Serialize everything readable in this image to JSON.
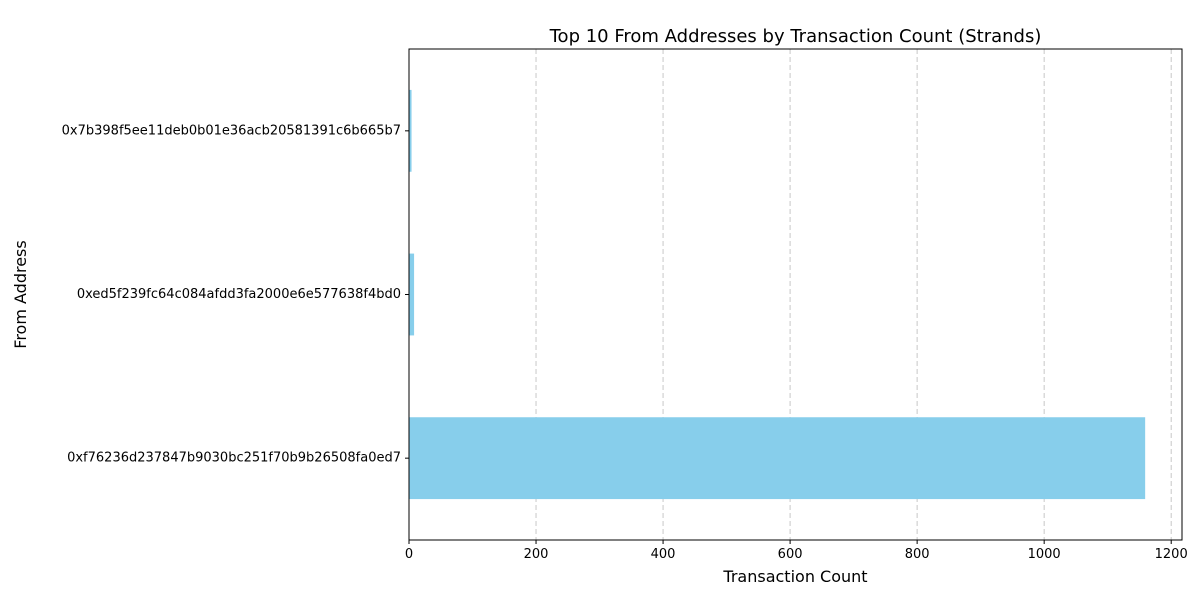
{
  "chart_data": {
    "type": "bar",
    "orientation": "horizontal",
    "title": "Top 10 From Addresses by Transaction Count (Strands)",
    "xlabel": "Transaction Count",
    "ylabel": "From Address",
    "categories": [
      "0xf76236d237847b9030bc251f70b9b26508fa0ed7",
      "0xed5f239fc64c084afdd3fa2000e6e577638f4bd0",
      "0x7b398f5ee11deb0b01e36acb20581391c6b665b7"
    ],
    "values": [
      1159,
      8,
      4
    ],
    "xlim": [
      0,
      1217
    ],
    "xticks": [
      0,
      200,
      400,
      600,
      800,
      1000,
      1200
    ],
    "grid": "x-dashed",
    "bar_color": "#87ceeb",
    "grid_color": "#c8c8c8"
  }
}
